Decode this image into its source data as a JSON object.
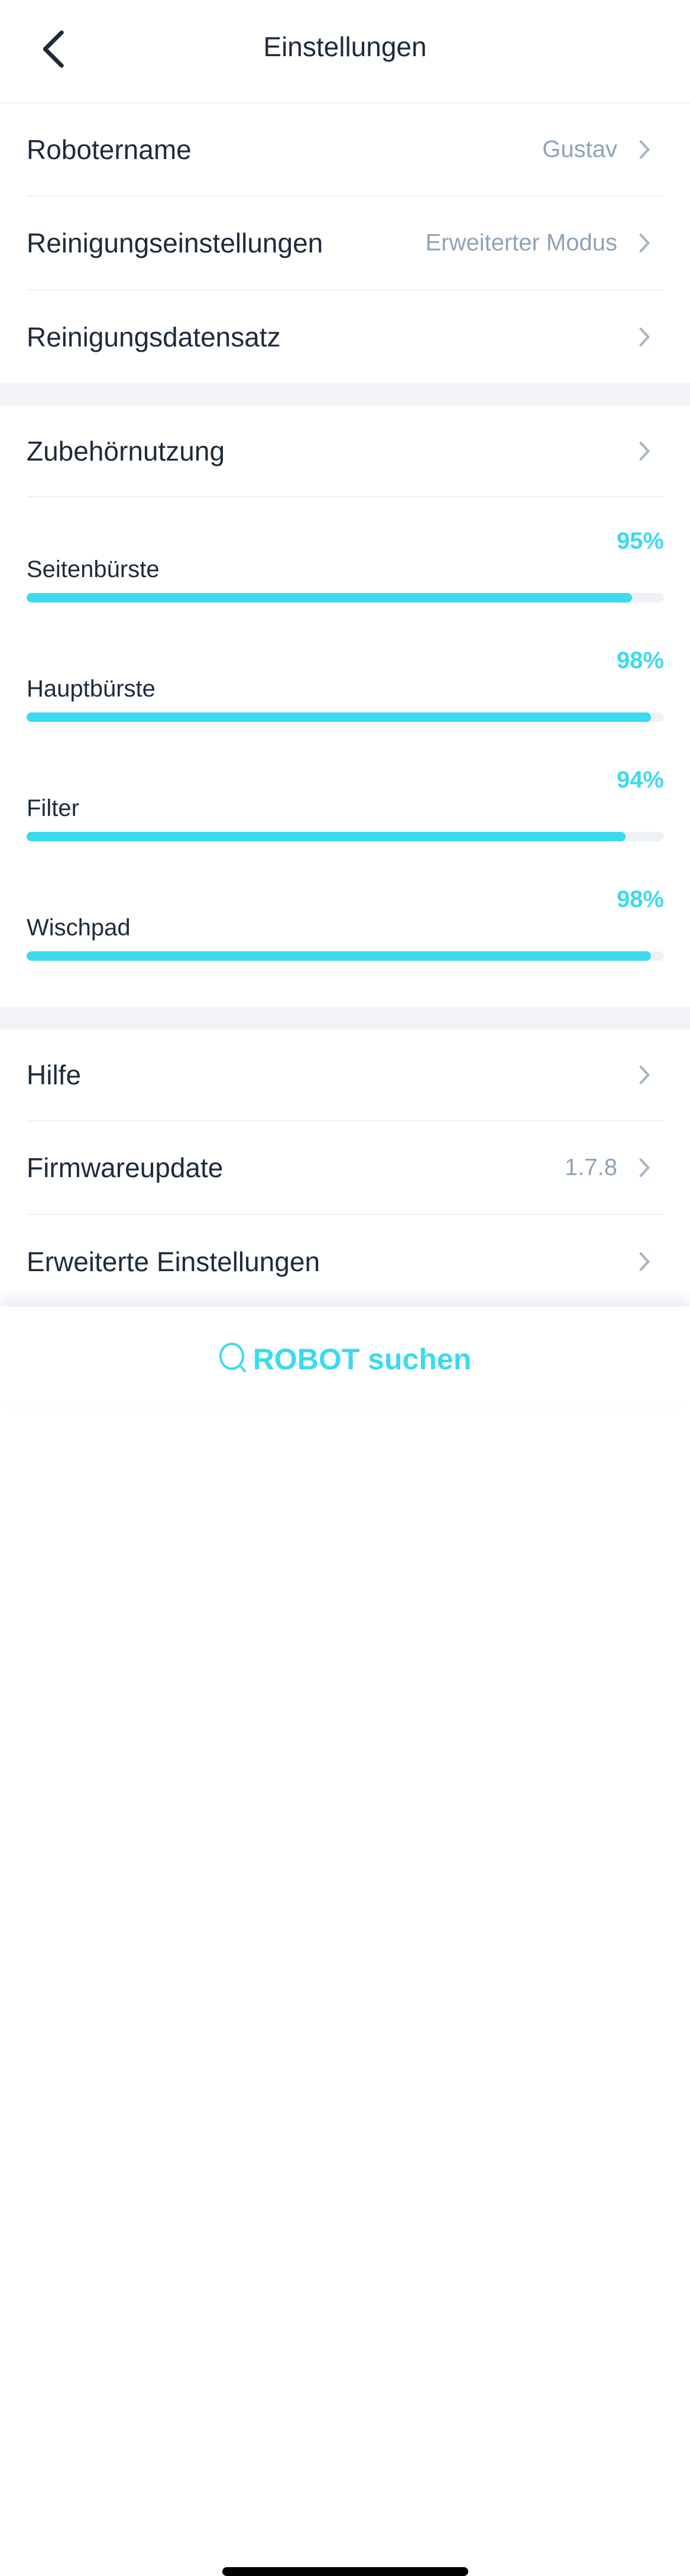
{
  "header": {
    "title": "Einstellungen",
    "back_icon": "chevron-left-icon"
  },
  "section1": [
    {
      "label": "Robotername",
      "value": "Gustav"
    },
    {
      "label": "Reinigungseinstellungen",
      "value": "Erweiterter Modus"
    },
    {
      "label": "Reinigungsdatensatz",
      "value": ""
    }
  ],
  "accessories": {
    "label": "Zubehörnutzung",
    "items": [
      {
        "label": "Seitenbürste",
        "percent_text": "95%",
        "percent": 95
      },
      {
        "label": "Hauptbürste",
        "percent_text": "98%",
        "percent": 98
      },
      {
        "label": "Filter",
        "percent_text": "94%",
        "percent": 94
      },
      {
        "label": "Wischpad",
        "percent_text": "98%",
        "percent": 98
      }
    ]
  },
  "section3": [
    {
      "label": "Hilfe",
      "value": ""
    },
    {
      "label": "Firmwareupdate",
      "value": "1.7.8"
    },
    {
      "label": "Erweiterte Einstellungen",
      "value": ""
    }
  ],
  "bottom": {
    "search_label": "ROBOT suchen",
    "icon": "search-icon"
  },
  "colors": {
    "accent": "#3bdaef",
    "text": "#1e2b3b",
    "muted": "#8fa3b8",
    "separator": "#f2f3f6"
  }
}
